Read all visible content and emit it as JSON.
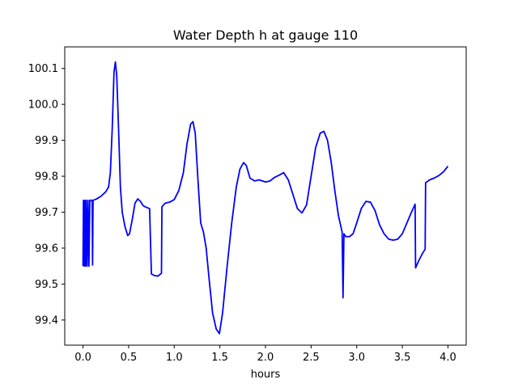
{
  "chart_data": {
    "type": "line",
    "title": "Water Depth h at gauge 110",
    "xlabel": "hours",
    "ylabel": "",
    "xlim": [
      -0.2,
      4.2
    ],
    "ylim": [
      99.33,
      100.16
    ],
    "xticks": [
      0.0,
      0.5,
      1.0,
      1.5,
      2.0,
      2.5,
      3.0,
      3.5,
      4.0
    ],
    "xtick_labels": [
      "0.0",
      "0.5",
      "1.0",
      "1.5",
      "2.0",
      "2.5",
      "3.0",
      "3.5",
      "4.0"
    ],
    "yticks": [
      99.4,
      99.5,
      99.6,
      99.7,
      99.8,
      99.9,
      100.0,
      100.1
    ],
    "ytick_labels": [
      "99.4",
      "99.5",
      "99.6",
      "99.7",
      "99.8",
      "99.9",
      "100.0",
      "100.1"
    ],
    "grid": false,
    "legend": "none",
    "series": [
      {
        "color": "#0000ff",
        "points": [
          [
            0.0,
            99.55
          ],
          [
            0.005,
            99.733
          ],
          [
            0.012,
            99.55
          ],
          [
            0.02,
            99.733
          ],
          [
            0.028,
            99.55
          ],
          [
            0.036,
            99.733
          ],
          [
            0.045,
            99.55
          ],
          [
            0.055,
            99.733
          ],
          [
            0.065,
            99.55
          ],
          [
            0.075,
            99.733
          ],
          [
            0.1,
            99.733
          ],
          [
            0.105,
            99.553
          ],
          [
            0.11,
            99.733
          ],
          [
            0.15,
            99.737
          ],
          [
            0.2,
            99.745
          ],
          [
            0.25,
            99.757
          ],
          [
            0.28,
            99.77
          ],
          [
            0.3,
            99.81
          ],
          [
            0.32,
            99.93
          ],
          [
            0.34,
            100.09
          ],
          [
            0.355,
            100.118
          ],
          [
            0.37,
            100.08
          ],
          [
            0.39,
            99.93
          ],
          [
            0.41,
            99.77
          ],
          [
            0.43,
            99.7
          ],
          [
            0.46,
            99.66
          ],
          [
            0.49,
            99.635
          ],
          [
            0.51,
            99.64
          ],
          [
            0.54,
            99.68
          ],
          [
            0.57,
            99.725
          ],
          [
            0.6,
            99.737
          ],
          [
            0.63,
            99.73
          ],
          [
            0.66,
            99.718
          ],
          [
            0.69,
            99.714
          ],
          [
            0.73,
            99.71
          ],
          [
            0.75,
            99.528
          ],
          [
            0.78,
            99.524
          ],
          [
            0.82,
            99.522
          ],
          [
            0.86,
            99.53
          ],
          [
            0.865,
            99.715
          ],
          [
            0.9,
            99.725
          ],
          [
            0.95,
            99.728
          ],
          [
            1.0,
            99.735
          ],
          [
            1.05,
            99.76
          ],
          [
            1.1,
            99.81
          ],
          [
            1.14,
            99.89
          ],
          [
            1.18,
            99.945
          ],
          [
            1.205,
            99.952
          ],
          [
            1.23,
            99.92
          ],
          [
            1.26,
            99.79
          ],
          [
            1.29,
            99.67
          ],
          [
            1.32,
            99.645
          ],
          [
            1.35,
            99.6
          ],
          [
            1.38,
            99.52
          ],
          [
            1.42,
            99.42
          ],
          [
            1.46,
            99.375
          ],
          [
            1.495,
            99.362
          ],
          [
            1.53,
            99.42
          ],
          [
            1.58,
            99.55
          ],
          [
            1.63,
            99.67
          ],
          [
            1.68,
            99.77
          ],
          [
            1.72,
            99.82
          ],
          [
            1.76,
            99.838
          ],
          [
            1.79,
            99.83
          ],
          [
            1.83,
            99.795
          ],
          [
            1.88,
            99.787
          ],
          [
            1.93,
            99.79
          ],
          [
            2.0,
            99.784
          ],
          [
            2.05,
            99.787
          ],
          [
            2.1,
            99.797
          ],
          [
            2.15,
            99.803
          ],
          [
            2.2,
            99.81
          ],
          [
            2.25,
            99.79
          ],
          [
            2.3,
            99.75
          ],
          [
            2.35,
            99.71
          ],
          [
            2.4,
            99.698
          ],
          [
            2.45,
            99.72
          ],
          [
            2.5,
            99.8
          ],
          [
            2.55,
            99.88
          ],
          [
            2.6,
            99.92
          ],
          [
            2.64,
            99.925
          ],
          [
            2.68,
            99.9
          ],
          [
            2.72,
            99.84
          ],
          [
            2.76,
            99.76
          ],
          [
            2.8,
            99.69
          ],
          [
            2.84,
            99.645
          ],
          [
            2.85,
            99.462
          ],
          [
            2.86,
            99.64
          ],
          [
            2.88,
            99.632
          ],
          [
            2.92,
            99.632
          ],
          [
            2.96,
            99.64
          ],
          [
            3.0,
            99.67
          ],
          [
            3.05,
            99.71
          ],
          [
            3.1,
            99.73
          ],
          [
            3.15,
            99.728
          ],
          [
            3.2,
            99.705
          ],
          [
            3.25,
            99.665
          ],
          [
            3.3,
            99.64
          ],
          [
            3.35,
            99.625
          ],
          [
            3.4,
            99.622
          ],
          [
            3.45,
            99.625
          ],
          [
            3.5,
            99.64
          ],
          [
            3.55,
            99.67
          ],
          [
            3.6,
            99.7
          ],
          [
            3.64,
            99.722
          ],
          [
            3.645,
            99.545
          ],
          [
            3.68,
            99.565
          ],
          [
            3.72,
            99.585
          ],
          [
            3.75,
            99.597
          ],
          [
            3.755,
            99.782
          ],
          [
            3.8,
            99.79
          ],
          [
            3.85,
            99.795
          ],
          [
            3.9,
            99.802
          ],
          [
            3.95,
            99.812
          ],
          [
            4.0,
            99.828
          ]
        ]
      }
    ]
  }
}
